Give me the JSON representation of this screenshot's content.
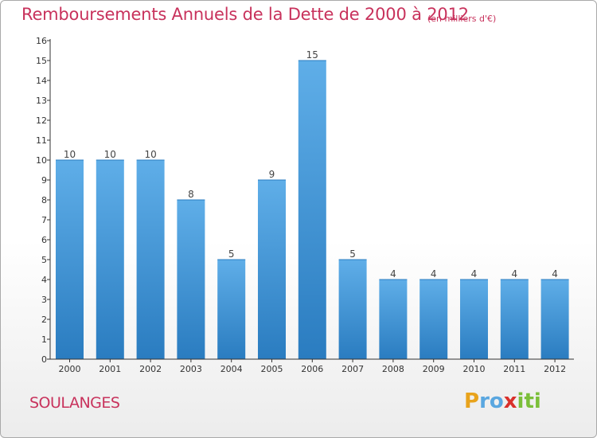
{
  "title": "Remboursements Annuels de la Dette de 2000 à 2012",
  "unit_note": "(en milliers d'€)",
  "commune": "SOULANGES",
  "brand": {
    "letters": [
      "P",
      "r",
      "o",
      "x",
      "i",
      "t",
      "i"
    ],
    "colors": [
      "#e8a31c",
      "#5aa7e0",
      "#5aa7e0",
      "#d9302b",
      "#7bbf3a",
      "#7bbf3a",
      "#7bbf3a"
    ]
  },
  "colors": {
    "bar_light": "#5faee8",
    "bar_dark": "#2a7cc0",
    "axis": "#333333",
    "text": "#444444"
  },
  "chart_data": {
    "type": "bar",
    "categories": [
      "2000",
      "2001",
      "2002",
      "2003",
      "2004",
      "2005",
      "2006",
      "2007",
      "2008",
      "2009",
      "2010",
      "2011",
      "2012"
    ],
    "values": [
      10,
      10,
      10,
      8,
      5,
      9,
      15,
      5,
      4,
      4,
      4,
      4,
      4
    ],
    "ylim": [
      0,
      16
    ],
    "yticks": [
      "0",
      "1",
      "2",
      "3",
      "4",
      "5",
      "6",
      "7",
      "8",
      "9",
      "10",
      "11",
      "12",
      "13",
      "14",
      "15",
      "16"
    ],
    "grid": false
  }
}
